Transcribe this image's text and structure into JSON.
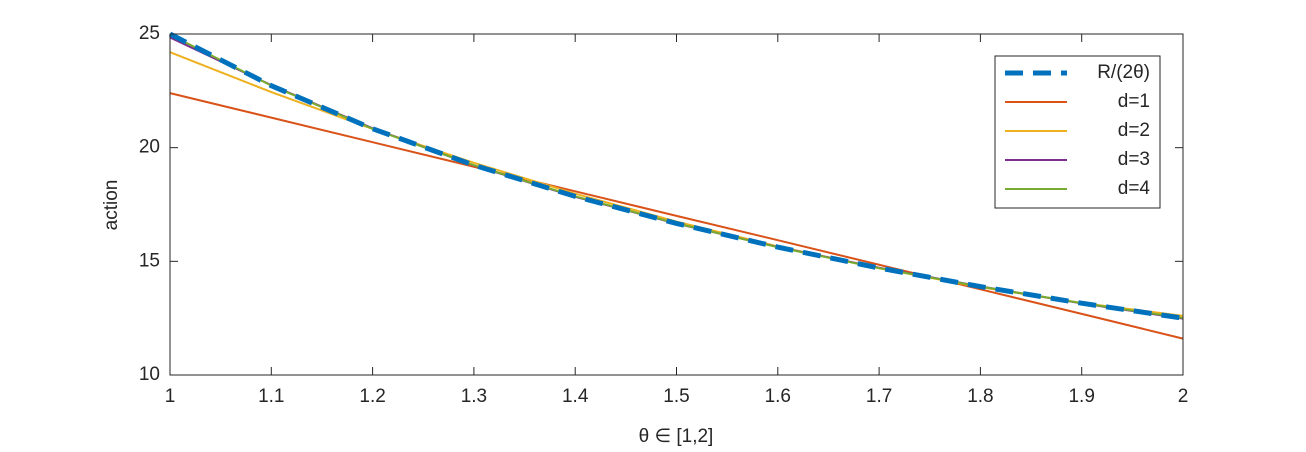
{
  "chart_data": {
    "type": "line",
    "x_label": "θ ∈ [1,2]",
    "y_label": "action",
    "x": [
      1,
      1.1,
      1.2,
      1.3,
      1.4,
      1.5,
      1.6,
      1.7,
      1.8,
      1.9,
      2
    ],
    "series": [
      {
        "name": "R/(2θ)",
        "color": "#0072BD",
        "dashed": true,
        "values": [
          25,
          22.727,
          20.833,
          19.231,
          17.857,
          16.667,
          15.625,
          14.706,
          13.889,
          13.158,
          12.5
        ]
      },
      {
        "name": "d=1",
        "color": "#D95319",
        "values": [
          22.4,
          21.32,
          20.24,
          19.16,
          18.08,
          17.0,
          15.93,
          14.85,
          13.77,
          12.69,
          11.6
        ]
      },
      {
        "name": "d=2",
        "color": "#EDB120",
        "values": [
          24.2,
          22.446,
          20.824,
          19.334,
          17.976,
          16.75,
          15.656,
          14.694,
          13.864,
          13.166,
          12.6
        ]
      },
      {
        "name": "d=3",
        "color": "#7E2F8E",
        "values": [
          24.85,
          22.75,
          20.85,
          19.22,
          17.84,
          16.66,
          15.63,
          14.72,
          13.9,
          13.15,
          12.48
        ]
      },
      {
        "name": "d=4",
        "color": "#77AC30",
        "values": [
          24.97,
          22.73,
          20.83,
          19.23,
          17.86,
          16.67,
          15.62,
          14.7,
          13.89,
          13.16,
          12.51
        ]
      }
    ],
    "xlim": [
      1,
      2
    ],
    "xticks": [
      1,
      1.1,
      1.2,
      1.3,
      1.4,
      1.5,
      1.6,
      1.7,
      1.8,
      1.9,
      2
    ],
    "ylim": [
      10,
      25
    ],
    "yticks": [
      10,
      15,
      20,
      25
    ],
    "grid": false,
    "legend": "northeast"
  }
}
